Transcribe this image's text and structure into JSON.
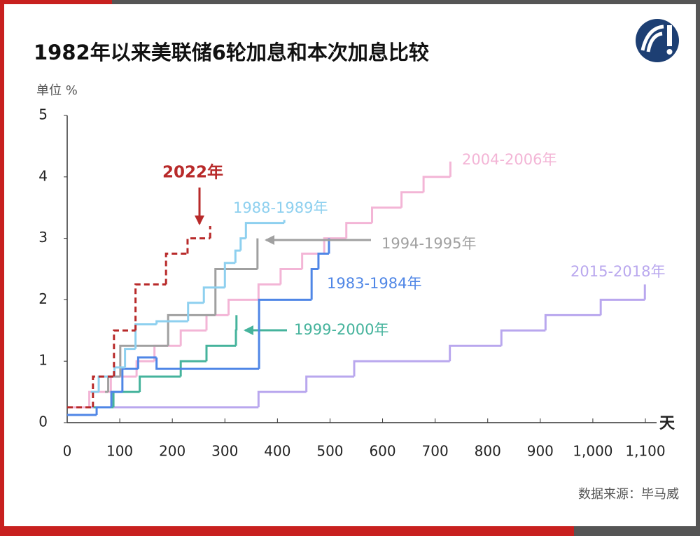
{
  "chart_data": {
    "type": "step-line",
    "title": "1982年以来美联储6轮加息和本次加息比较",
    "y_label": "单位 %",
    "x_label": "天",
    "source": "数据来源：毕马威",
    "xlim": [
      0,
      1100
    ],
    "ylim": [
      0,
      5
    ],
    "xticks": [
      0,
      100,
      200,
      300,
      400,
      500,
      600,
      700,
      800,
      900,
      {
        "value": 1000,
        "label": "1,000"
      },
      {
        "value": 1100,
        "label": "1,100"
      }
    ],
    "yticks": [
      0,
      1,
      2,
      3,
      4,
      5
    ],
    "series": [
      {
        "name": "2022年",
        "color": "#b82a2a",
        "dashed": true,
        "x": [
          0,
          49,
          89,
          130,
          188,
          229,
          272
        ],
        "values": [
          0.25,
          0.75,
          1.5,
          2.25,
          2.75,
          3,
          3.2
        ]
      },
      {
        "name": "1988-1989年",
        "color": "#8ed0ef",
        "x": [
          45,
          60,
          90,
          110,
          130,
          170,
          230,
          260,
          300,
          320,
          330,
          340,
          413
        ],
        "values": [
          0.5,
          0.75,
          0.9,
          1.2,
          1.6,
          1.65,
          1.95,
          2.2,
          2.6,
          2.8,
          3,
          3.25,
          3.3
        ]
      },
      {
        "name": "1994-1995年",
        "color": "#a0a0a0",
        "x": [
          72,
          78,
          101,
          192,
          282,
          362
        ],
        "values": [
          0.5,
          0.75,
          1.25,
          1.75,
          2.5,
          3
        ]
      },
      {
        "name": "1983-1984年",
        "color": "#4f86e6",
        "x": [
          0,
          56,
          84,
          105,
          135,
          170,
          365,
          465,
          478,
          498
        ],
        "values": [
          0.125,
          0.25,
          0.5,
          0.875,
          1.06,
          0.875,
          2,
          2.5,
          2.75,
          3
        ]
      },
      {
        "name": "1999-2000年",
        "color": "#45b39c",
        "x": [
          50,
          88,
          138,
          216,
          265,
          321,
          322
        ],
        "values": [
          0.25,
          0.5,
          0.75,
          1,
          1.25,
          1.5,
          1.75
        ]
      },
      {
        "name": "2004-2006年",
        "color": "#f3b5d6",
        "x": [
          0,
          42,
          83,
          132,
          166,
          216,
          265,
          307,
          364,
          406,
          447,
          489,
          531,
          580,
          636,
          678,
          729
        ],
        "values": [
          0.25,
          0.5,
          0.75,
          1,
          1.25,
          1.5,
          1.75,
          2,
          2.25,
          2.5,
          2.75,
          3,
          3.25,
          3.5,
          3.75,
          4,
          4.25
        ]
      },
      {
        "name": "2015-2018年",
        "color": "#b9a7ee",
        "x": [
          0,
          364,
          455,
          546,
          728,
          826,
          910,
          1015,
          1099
        ],
        "values": [
          0.25,
          0.5,
          0.75,
          1,
          1.25,
          1.5,
          1.75,
          2,
          2.25
        ]
      }
    ]
  }
}
